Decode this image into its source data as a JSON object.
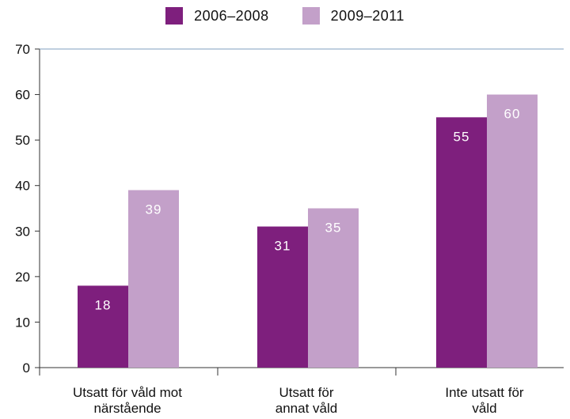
{
  "chart_data": {
    "type": "bar",
    "categories": [
      "Utsatt för våld mot\nnärstående",
      "Utsatt för\nannat våld",
      "Inte utsatt för\nvåld"
    ],
    "series": [
      {
        "name": "2006–2008",
        "values": [
          18,
          31,
          55
        ],
        "color": "#7e1f7d"
      },
      {
        "name": "2009–2011",
        "values": [
          39,
          35,
          60
        ],
        "color": "#c3a0c9"
      }
    ],
    "yticks": [
      0,
      10,
      20,
      30,
      40,
      50,
      60,
      70
    ],
    "ylim": [
      0,
      70
    ],
    "grid": false,
    "legend_position": "top-center",
    "data_labels": true
  }
}
